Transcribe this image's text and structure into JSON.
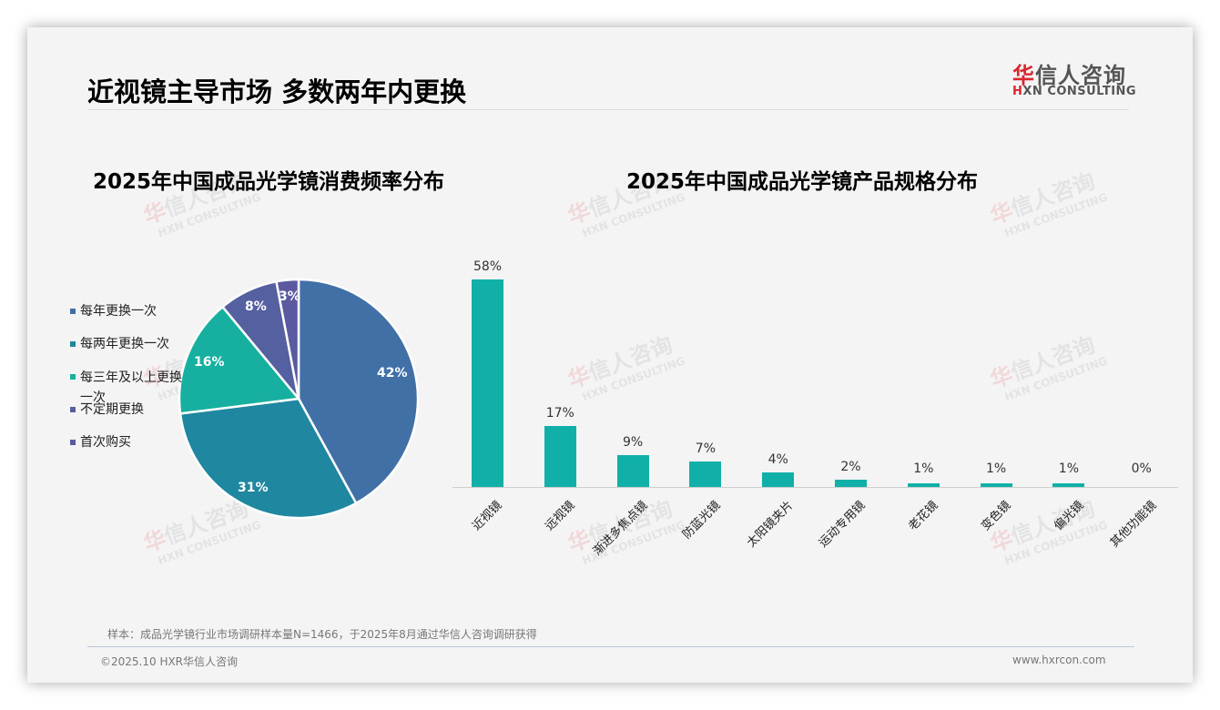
{
  "page": {
    "title": "近视镜主导市场 多数两年内更换",
    "logo": {
      "cn_red": "华",
      "cn_rest": "信人咨询",
      "en_red": "H",
      "en_rest": "XN CONSULTING"
    },
    "watermark": {
      "cn_red": "华",
      "cn_rest": "信人咨询",
      "en": "HXN CONSULTING"
    },
    "note": "样本：成品光学镜行业市场调研样本量N=1466，于2025年8月通过华信人咨询调研获得",
    "footer_left": "©2025.10 HXR华信人咨询",
    "footer_right": "www.hxrcon.com"
  },
  "pie_chart": {
    "title": "2025年中国成品光学镜消费频率分布",
    "legend": [
      {
        "label": "每年更换一次",
        "color": "#4170a6"
      },
      {
        "label": "每两年更换一次",
        "color": "#1f87a0"
      },
      {
        "label": "每三年及以上更换一次",
        "color": "#17b0a0"
      },
      {
        "label": "不定期更换",
        "color": "#5560a0"
      },
      {
        "label": "首次购买",
        "color": "#5b5aa0"
      }
    ],
    "slice_labels": [
      "42%",
      "31%",
      "16%",
      "8%",
      "3%"
    ]
  },
  "bar_chart": {
    "title": "2025年中国成品光学镜产品规格分布",
    "bar_color": "#10b0a8",
    "categories": [
      "近视镜",
      "远视镜",
      "渐进多焦点镜",
      "防蓝光镜",
      "太阳镜夹片",
      "运动专用镜",
      "老花镜",
      "变色镜",
      "偏光镜",
      "其他功能镜"
    ],
    "value_labels": [
      "58%",
      "17%",
      "9%",
      "7%",
      "4%",
      "2%",
      "1%",
      "1%",
      "1%",
      "0%"
    ]
  },
  "chart_data": [
    {
      "type": "pie",
      "title": "2025年中国成品光学镜消费频率分布",
      "categories": [
        "每年更换一次",
        "每两年更换一次",
        "每三年及以上更换一次",
        "不定期更换",
        "首次购买"
      ],
      "values": [
        42,
        31,
        16,
        8,
        3
      ],
      "unit": "%",
      "colors": [
        "#4170a6",
        "#1f87a0",
        "#17b0a0",
        "#5560a0",
        "#5b5aa0"
      ],
      "legend_position": "left"
    },
    {
      "type": "bar",
      "title": "2025年中国成品光学镜产品规格分布",
      "categories": [
        "近视镜",
        "远视镜",
        "渐进多焦点镜",
        "防蓝光镜",
        "太阳镜夹片",
        "运动专用镜",
        "老花镜",
        "变色镜",
        "偏光镜",
        "其他功能镜"
      ],
      "values": [
        58,
        17,
        9,
        7,
        4,
        2,
        1,
        1,
        1,
        0
      ],
      "unit": "%",
      "xlabel": "",
      "ylabel": "",
      "ylim": [
        0,
        60
      ],
      "grid": false,
      "data_labels": true
    }
  ]
}
